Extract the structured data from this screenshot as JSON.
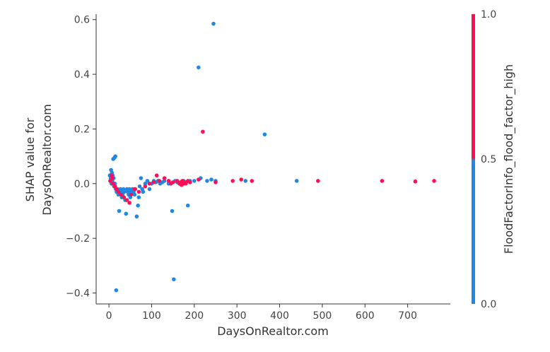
{
  "chart_data": {
    "type": "scatter",
    "title": "",
    "xlabel": "DaysOnRealtor.com",
    "ylabel_lines": [
      "SHAP value for",
      "DaysOnRealtor.com"
    ],
    "xlim": [
      -30,
      800
    ],
    "ylim": [
      -0.44,
      0.62
    ],
    "x_ticks": [
      0,
      100,
      200,
      300,
      400,
      500,
      600,
      700
    ],
    "x_tick_labels": [
      "0",
      "100",
      "200",
      "300",
      "400",
      "500",
      "600",
      "700"
    ],
    "y_ticks": [
      -0.4,
      -0.2,
      0.0,
      0.2,
      0.4,
      0.6
    ],
    "y_tick_labels": [
      "−0.4",
      "−0.2",
      "0.0",
      "0.2",
      "0.4",
      "0.6"
    ],
    "grid": false,
    "colorbar": {
      "label": "FloodFactorInfo_flood_factor_high",
      "tick_labels": [
        "0.0",
        "0.5",
        "1.0"
      ],
      "low_color": "#1e88e5",
      "high_color": "#ff0d57"
    },
    "series": [
      {
        "color_value": 0,
        "color": "#1e88e5",
        "points": [
          [
            2,
            0.03
          ],
          [
            4,
            0.02
          ],
          [
            5,
            0.05
          ],
          [
            6,
            0.0
          ],
          [
            7,
            0.04
          ],
          [
            8,
            0.01
          ],
          [
            9,
            0.03
          ],
          [
            10,
            0.09
          ],
          [
            11,
            0.02
          ],
          [
            12,
            -0.01
          ],
          [
            13,
            0.095
          ],
          [
            14,
            0.0
          ],
          [
            15,
            0.1
          ],
          [
            16,
            -0.02
          ],
          [
            17,
            -0.39
          ],
          [
            18,
            -0.03
          ],
          [
            20,
            -0.02
          ],
          [
            22,
            -0.04
          ],
          [
            24,
            -0.1
          ],
          [
            25,
            -0.03
          ],
          [
            27,
            -0.02
          ],
          [
            28,
            -0.03
          ],
          [
            30,
            -0.05
          ],
          [
            32,
            -0.04
          ],
          [
            34,
            -0.02
          ],
          [
            36,
            -0.03
          ],
          [
            38,
            -0.06
          ],
          [
            40,
            -0.11
          ],
          [
            42,
            -0.02
          ],
          [
            44,
            -0.03
          ],
          [
            46,
            -0.04
          ],
          [
            48,
            -0.02
          ],
          [
            50,
            -0.05
          ],
          [
            52,
            -0.03
          ],
          [
            55,
            -0.02
          ],
          [
            58,
            -0.03
          ],
          [
            60,
            -0.04
          ],
          [
            62,
            -0.02
          ],
          [
            65,
            -0.12
          ],
          [
            68,
            -0.08
          ],
          [
            70,
            -0.05
          ],
          [
            72,
            -0.01
          ],
          [
            75,
            0.02
          ],
          [
            78,
            -0.02
          ],
          [
            80,
            -0.03
          ],
          [
            85,
            0.0
          ],
          [
            90,
            0.01
          ],
          [
            95,
            -0.02
          ],
          [
            100,
            0.0
          ],
          [
            105,
            0.01
          ],
          [
            110,
            0.005
          ],
          [
            115,
            0.01
          ],
          [
            120,
            0.0
          ],
          [
            125,
            0.005
          ],
          [
            130,
            0.01
          ],
          [
            140,
            0.0
          ],
          [
            148,
            -0.1
          ],
          [
            152,
            -0.35
          ],
          [
            155,
            0.01
          ],
          [
            160,
            0.005
          ],
          [
            170,
            0.0
          ],
          [
            175,
            0.01
          ],
          [
            180,
            0.005
          ],
          [
            185,
            -0.08
          ],
          [
            190,
            0.01
          ],
          [
            200,
            0.01
          ],
          [
            210,
            0.425
          ],
          [
            215,
            0.02
          ],
          [
            230,
            0.01
          ],
          [
            240,
            0.015
          ],
          [
            245,
            0.585
          ],
          [
            250,
            0.01
          ],
          [
            320,
            0.01
          ],
          [
            365,
            0.18
          ],
          [
            440,
            0.01
          ]
        ]
      },
      {
        "color_value": 1,
        "color": "#ff0d57",
        "points": [
          [
            3,
            0.01
          ],
          [
            6,
            0.03
          ],
          [
            8,
            0.02
          ],
          [
            10,
            0.0
          ],
          [
            14,
            -0.01
          ],
          [
            18,
            -0.02
          ],
          [
            22,
            -0.03
          ],
          [
            28,
            -0.04
          ],
          [
            35,
            -0.05
          ],
          [
            42,
            -0.06
          ],
          [
            48,
            -0.07
          ],
          [
            52,
            -0.04
          ],
          [
            60,
            -0.02
          ],
          [
            70,
            -0.03
          ],
          [
            85,
            -0.01
          ],
          [
            95,
            0.0
          ],
          [
            105,
            0.005
          ],
          [
            112,
            0.03
          ],
          [
            118,
            0.01
          ],
          [
            130,
            0.02
          ],
          [
            140,
            0.01
          ],
          [
            145,
            0.0
          ],
          [
            150,
            0.005
          ],
          [
            160,
            0.01
          ],
          [
            165,
            0.0
          ],
          [
            168,
            0.005
          ],
          [
            170,
            -0.005
          ],
          [
            172,
            0.01
          ],
          [
            175,
            0.0
          ],
          [
            178,
            0.005
          ],
          [
            180,
            0.0
          ],
          [
            185,
            0.01
          ],
          [
            190,
            0.005
          ],
          [
            210,
            0.015
          ],
          [
            220,
            0.19
          ],
          [
            250,
            0.005
          ],
          [
            290,
            0.01
          ],
          [
            310,
            0.015
          ],
          [
            335,
            0.01
          ],
          [
            490,
            0.01
          ],
          [
            640,
            0.01
          ],
          [
            718,
            0.008
          ],
          [
            762,
            0.01
          ]
        ]
      }
    ]
  }
}
